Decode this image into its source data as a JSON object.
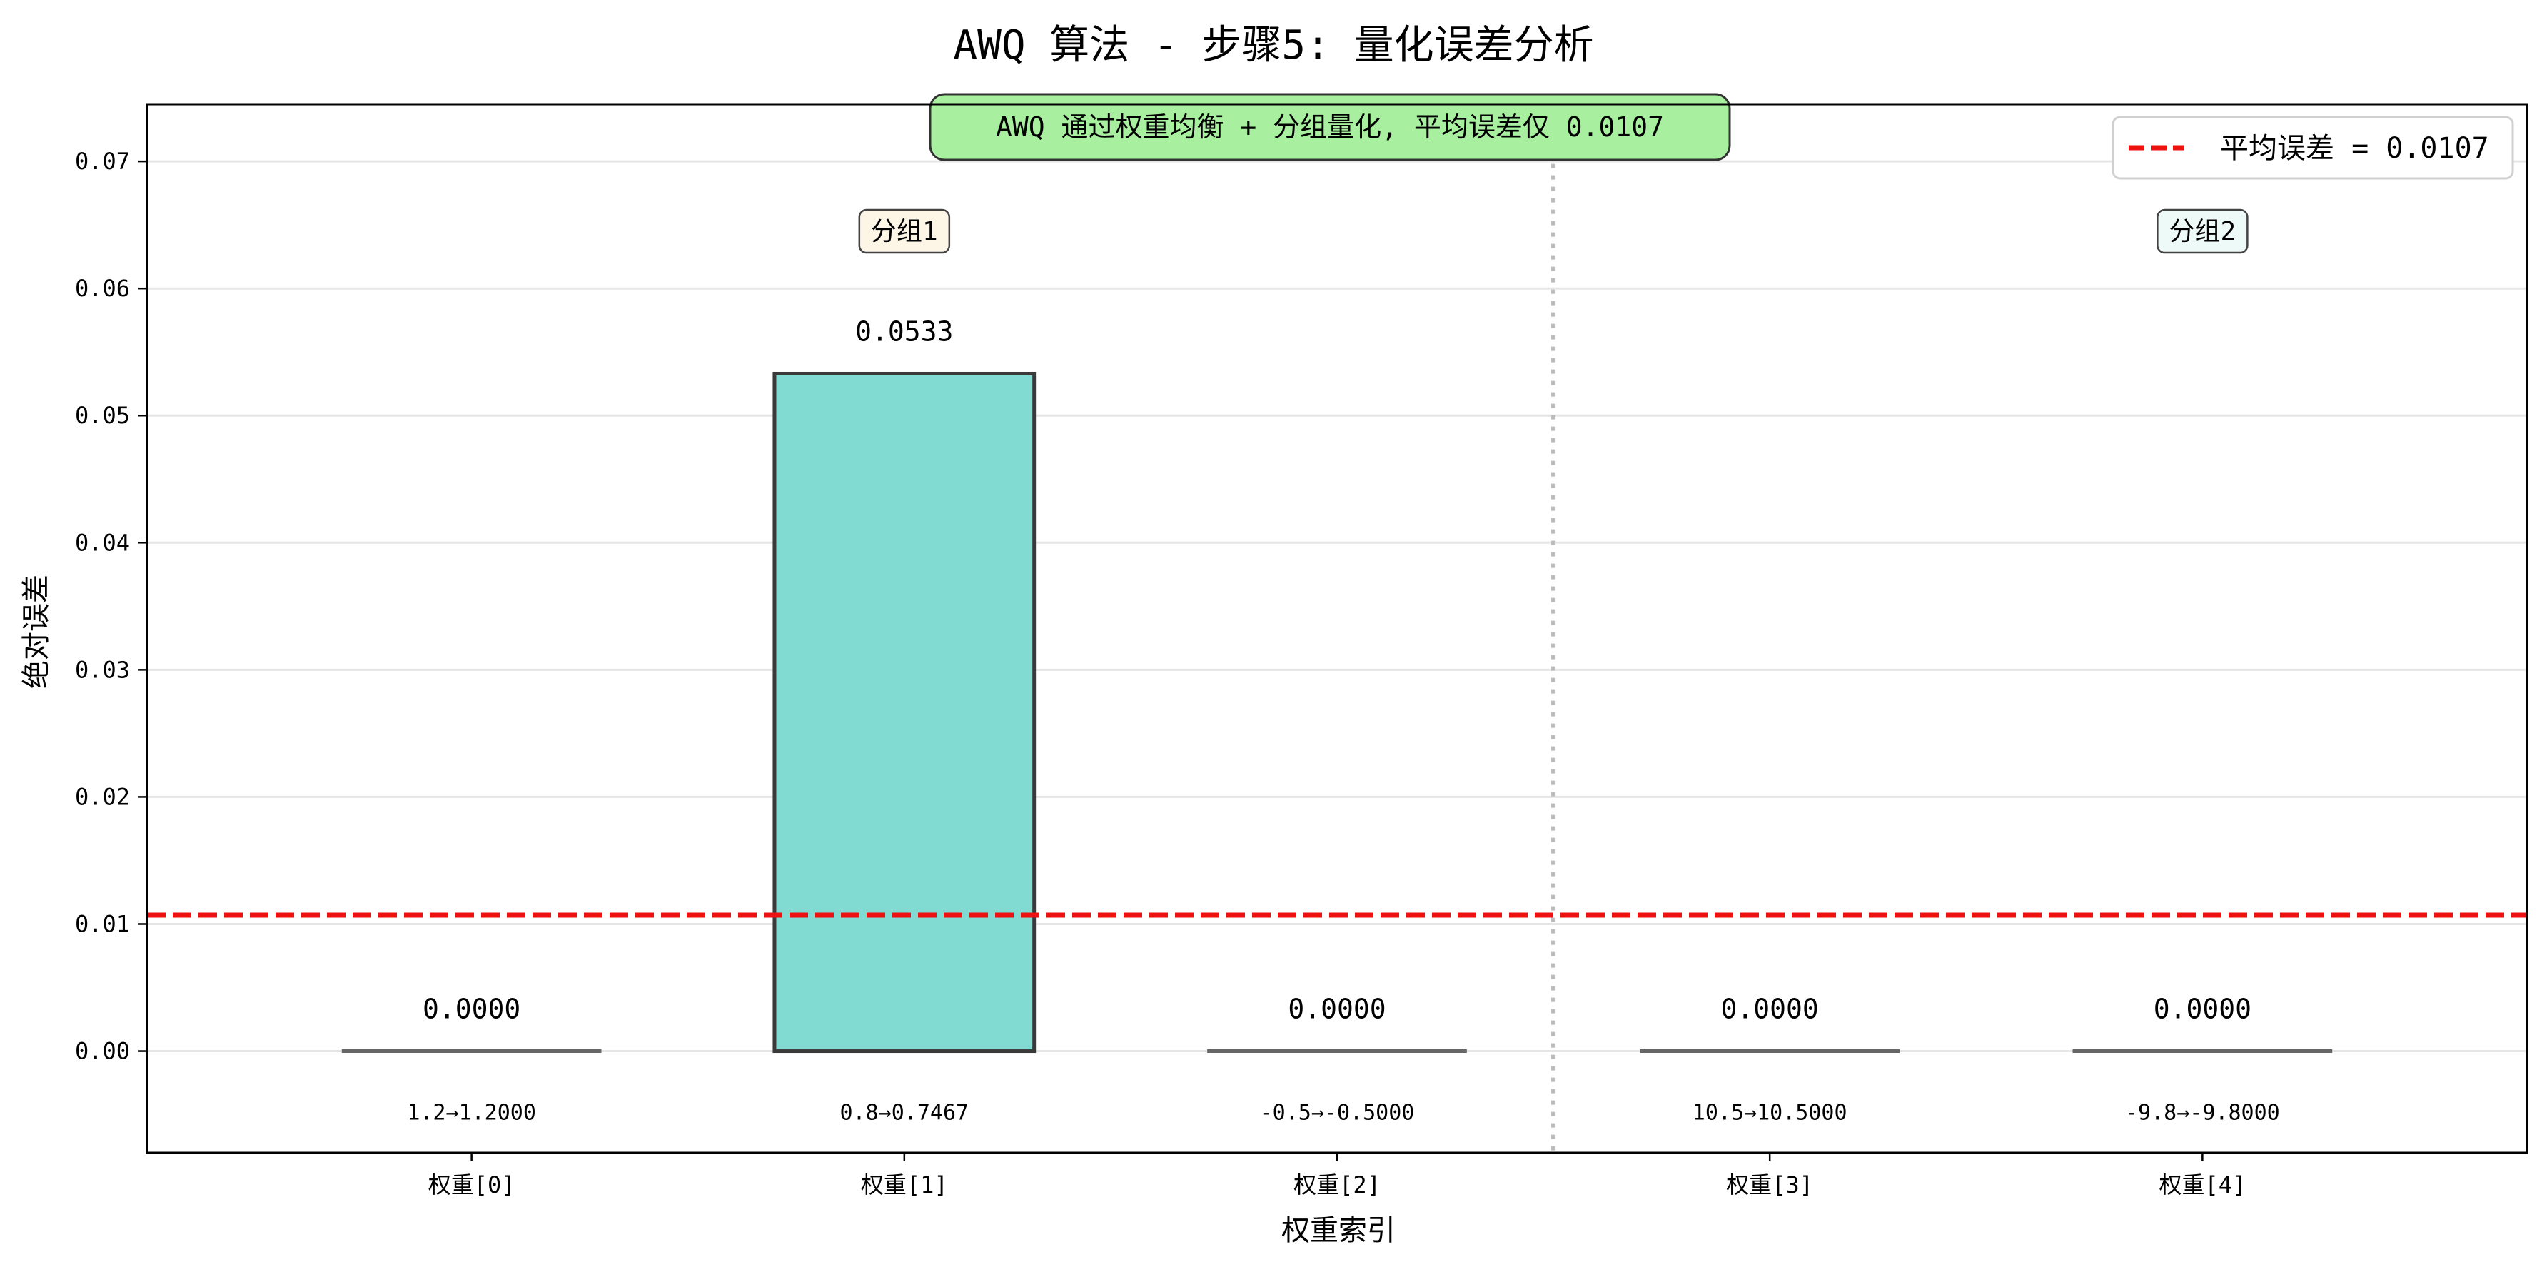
{
  "title": "AWQ 算法 - 步骤5: 量化误差分析",
  "chart_data": {
    "type": "bar",
    "categories": [
      "权重[0]",
      "权重[1]",
      "权重[2]",
      "权重[3]",
      "权重[4]"
    ],
    "values": [
      0.0,
      0.0533,
      0.0,
      0.0,
      0.0
    ],
    "value_labels": [
      "0.0000",
      "0.0533",
      "0.0000",
      "0.0000",
      "0.0000"
    ],
    "conversion_labels": [
      "1.2→1.2000",
      "0.8→0.7467",
      "-0.5→-0.5000",
      "10.5→10.5000",
      "-9.8→-9.8000"
    ],
    "xlabel": "权重索引",
    "ylabel": "绝对误差",
    "ylim": [
      -0.008,
      0.0745
    ],
    "yticks": [
      0.0,
      0.01,
      0.02,
      0.03,
      0.04,
      0.05,
      0.06,
      0.07
    ],
    "ytick_labels": [
      "0.00",
      "0.01",
      "0.02",
      "0.03",
      "0.04",
      "0.05",
      "0.06",
      "0.07"
    ],
    "grid": "horizontal",
    "mean_line": {
      "value": 0.0107,
      "label": "平均误差 = 0.0107",
      "color": "#ee1111"
    },
    "group_divider_after_index": 2,
    "groups": [
      {
        "label": "分组1",
        "center_index": 1,
        "bg": "#fdf5e6"
      },
      {
        "label": "分组2",
        "center_index": 4,
        "bg": "#eefaf8"
      }
    ],
    "annotation": {
      "text": "AWQ 通过权重均衡 + 分组量化, 平均误差仅 0.0107",
      "bg": "#a8f0a0"
    },
    "legend_position": "top-right",
    "colors": {
      "bar": "#82dbd3",
      "bar_edge": "#3a3a3a",
      "zero_bar": "#666666",
      "divider": "#bbbbbb"
    }
  }
}
